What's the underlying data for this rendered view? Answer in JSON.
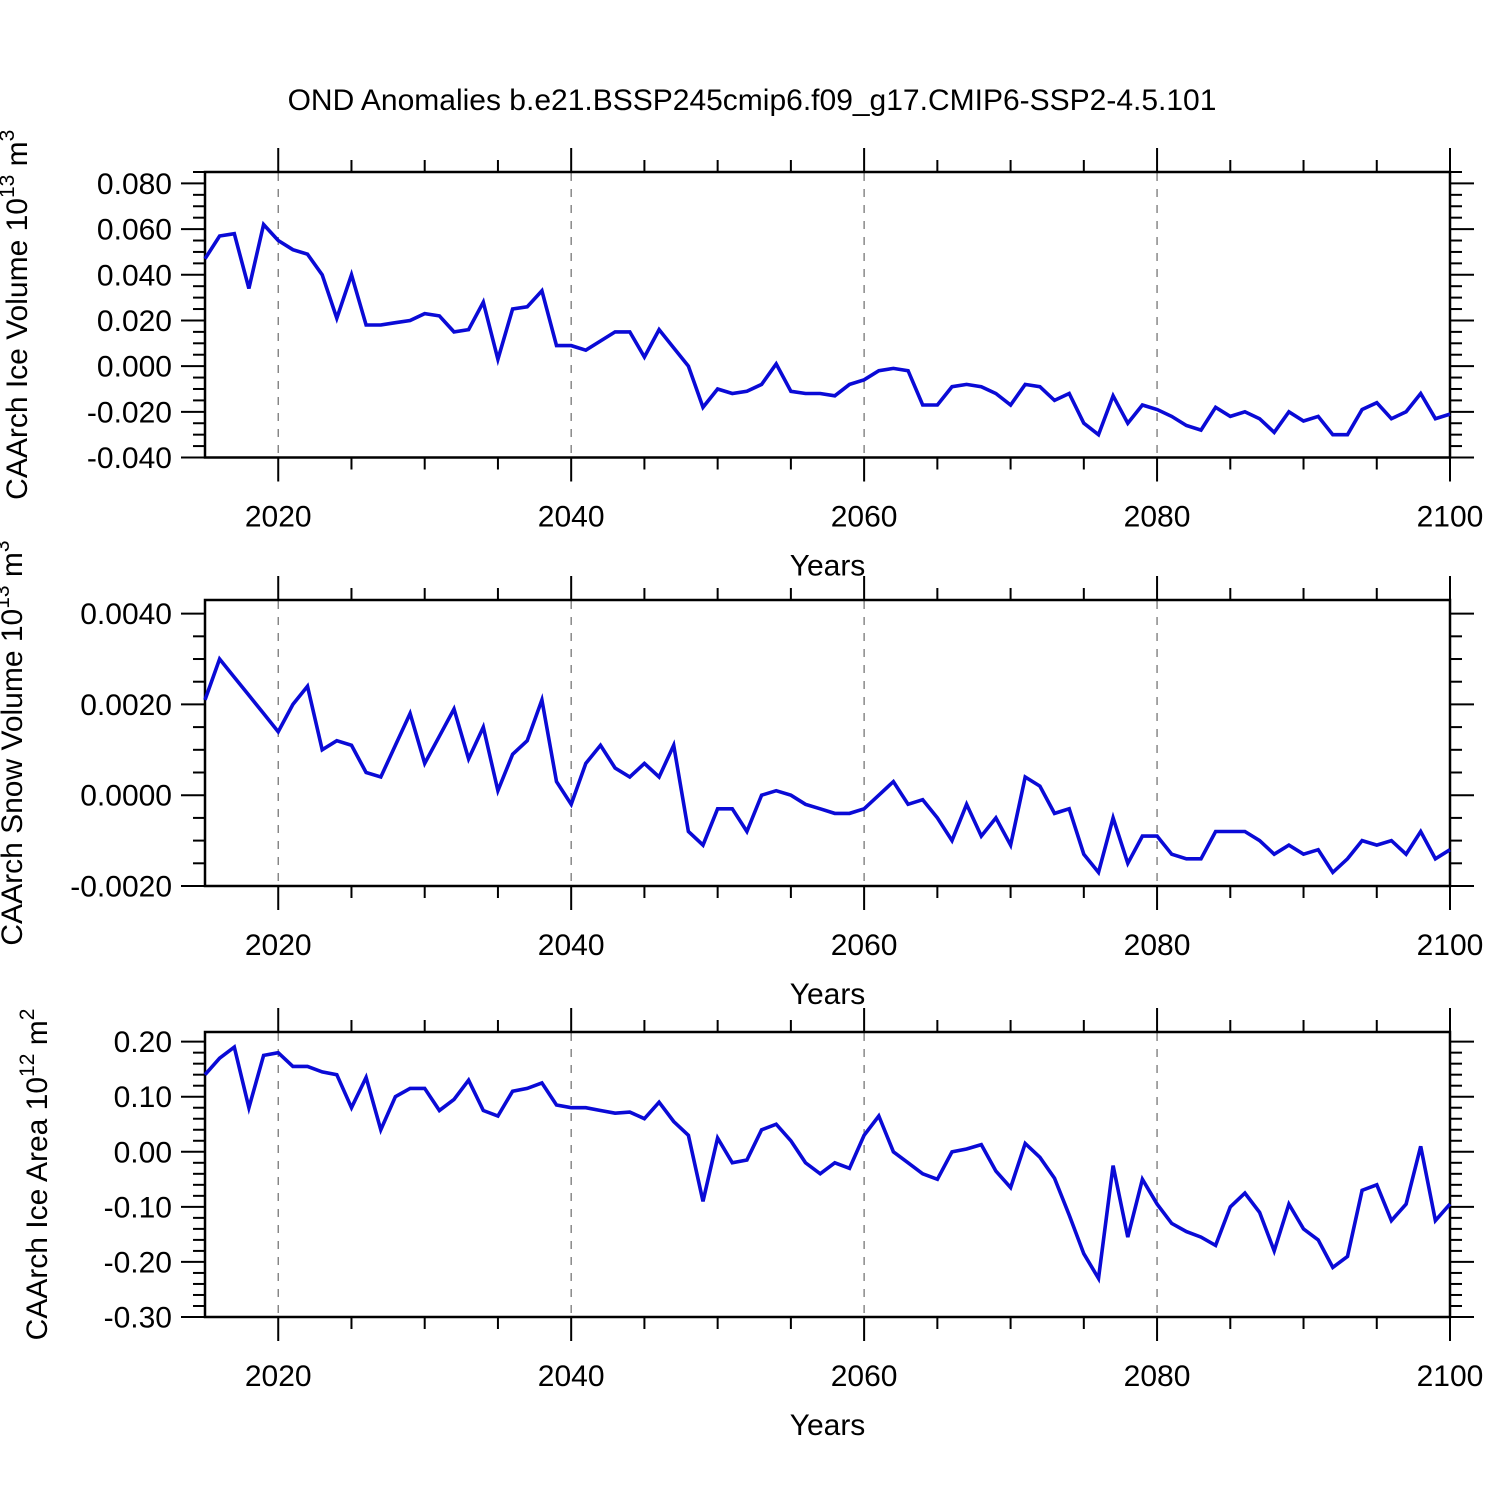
{
  "title": "OND Anomalies b.e21.BSSP245cmip6.f09_g17.CMIP6-SSP2-4.5.101",
  "colors": {
    "line": "#0a0ad6",
    "frame": "#000000",
    "grid": "#777777",
    "background": "#ffffff"
  },
  "x_axis": {
    "label": "Years",
    "range": [
      2015,
      2100
    ],
    "tick_labels": [
      "2020",
      "2040",
      "2060",
      "2080",
      "2100"
    ],
    "tick_values": [
      2020,
      2040,
      2060,
      2080,
      2100
    ],
    "minor_step": 5,
    "grid_years": [
      2020,
      2040,
      2060,
      2080
    ],
    "grid_style": "dashed-vertical"
  },
  "chart_data": [
    {
      "type": "line",
      "name": "caarch-ice-volume",
      "ylabel_parts": [
        {
          "t": "CAArch Ice Volume 10"
        },
        {
          "t": "13",
          "sup": true
        },
        {
          "t": " m",
          "sup": false
        },
        {
          "t": "3",
          "sup": true
        }
      ],
      "ylabel_text": "CAArch Ice Volume 10¹³ m³",
      "ylim": [
        -0.04,
        0.085
      ],
      "y_tick_labels": [
        "0.080",
        "0.060",
        "0.040",
        "0.020",
        "0.000",
        "-0.020",
        "-0.040"
      ],
      "y_tick_values": [
        0.08,
        0.06,
        0.04,
        0.02,
        0.0,
        -0.02,
        -0.04
      ],
      "y_minor_step": 0.005,
      "x_start": 2015,
      "x_step": 1,
      "values": [
        0.047,
        0.057,
        0.058,
        0.034,
        0.062,
        0.055,
        0.051,
        0.049,
        0.04,
        0.021,
        0.04,
        0.018,
        0.018,
        0.019,
        0.02,
        0.023,
        0.022,
        0.015,
        0.016,
        0.028,
        0.003,
        0.025,
        0.026,
        0.033,
        0.009,
        0.009,
        0.007,
        0.011,
        0.015,
        0.015,
        0.004,
        0.016,
        0.008,
        0.0,
        -0.018,
        -0.01,
        -0.012,
        -0.011,
        -0.008,
        0.001,
        -0.011,
        -0.012,
        -0.012,
        -0.013,
        -0.008,
        -0.006,
        -0.002,
        -0.001,
        -0.002,
        -0.017,
        -0.017,
        -0.009,
        -0.008,
        -0.009,
        -0.012,
        -0.017,
        -0.008,
        -0.009,
        -0.015,
        -0.012,
        -0.025,
        -0.03,
        -0.013,
        -0.025,
        -0.017,
        -0.019,
        -0.022,
        -0.026,
        -0.028,
        -0.018,
        -0.022,
        -0.02,
        -0.023,
        -0.029,
        -0.02,
        -0.024,
        -0.022,
        -0.03,
        -0.03,
        -0.019,
        -0.016,
        -0.023,
        -0.02,
        -0.012,
        -0.023,
        -0.021
      ]
    },
    {
      "type": "line",
      "name": "caarch-snow-volume",
      "ylabel_parts": [
        {
          "t": "CAArch Snow Volume 10"
        },
        {
          "t": "13",
          "sup": true
        },
        {
          "t": " m",
          "sup": false
        },
        {
          "t": "3",
          "sup": true
        }
      ],
      "ylabel_text": "CAArch Snow Volume 10¹³ m³",
      "ylim": [
        -0.002,
        0.0043
      ],
      "y_tick_labels": [
        "0.0040",
        "0.0020",
        "0.0000",
        "-0.0020"
      ],
      "y_tick_values": [
        0.004,
        0.002,
        0.0,
        -0.002
      ],
      "y_minor_step": 0.0005,
      "x_start": 2015,
      "x_step": 1,
      "values": [
        0.0021,
        0.003,
        0.0026,
        0.0022,
        0.0018,
        0.0014,
        0.002,
        0.0024,
        0.001,
        0.0012,
        0.0011,
        0.0005,
        0.0004,
        0.0011,
        0.0018,
        0.0007,
        0.0013,
        0.0019,
        0.0008,
        0.0015,
        0.0001,
        0.0009,
        0.0012,
        0.0021,
        0.0003,
        -0.0002,
        0.0007,
        0.0011,
        0.0006,
        0.0004,
        0.0007,
        0.0004,
        0.0011,
        -0.0008,
        -0.0011,
        -0.0003,
        -0.0003,
        -0.0008,
        0.0,
        0.0001,
        0.0,
        -0.0002,
        -0.0003,
        -0.0004,
        -0.0004,
        -0.0003,
        0.0,
        0.0003,
        -0.0002,
        -0.0001,
        -0.0005,
        -0.001,
        -0.0002,
        -0.0009,
        -0.0005,
        -0.0011,
        0.0004,
        0.0002,
        -0.0004,
        -0.0003,
        -0.0013,
        -0.0017,
        -0.0005,
        -0.0015,
        -0.0009,
        -0.0009,
        -0.0013,
        -0.0014,
        -0.0014,
        -0.0008,
        -0.0008,
        -0.0008,
        -0.001,
        -0.0013,
        -0.0011,
        -0.0013,
        -0.0012,
        -0.0017,
        -0.0014,
        -0.001,
        -0.0011,
        -0.001,
        -0.0013,
        -0.0008,
        -0.0014,
        -0.0012
      ]
    },
    {
      "type": "line",
      "name": "caarch-ice-area",
      "ylabel_parts": [
        {
          "t": "CAArch Ice Area 10"
        },
        {
          "t": "12",
          "sup": true
        },
        {
          "t": " m",
          "sup": false
        },
        {
          "t": "2",
          "sup": true
        }
      ],
      "ylabel_text": "CAArch Ice Area 10¹² m²",
      "ylim": [
        -0.3,
        0.2175
      ],
      "y_tick_labels": [
        "0.20",
        "0.10",
        "0.00",
        "-0.10",
        "-0.20",
        "-0.30"
      ],
      "y_tick_values": [
        0.2,
        0.1,
        0.0,
        -0.1,
        -0.2,
        -0.3
      ],
      "y_minor_step": 0.02,
      "x_start": 2015,
      "x_step": 1,
      "values": [
        0.14,
        0.17,
        0.19,
        0.08,
        0.175,
        0.18,
        0.155,
        0.155,
        0.145,
        0.14,
        0.08,
        0.135,
        0.04,
        0.1,
        0.115,
        0.115,
        0.075,
        0.095,
        0.13,
        0.075,
        0.065,
        0.11,
        0.115,
        0.125,
        0.085,
        0.08,
        0.08,
        0.075,
        0.07,
        0.072,
        0.06,
        0.09,
        0.055,
        0.03,
        -0.09,
        0.025,
        -0.02,
        -0.015,
        0.04,
        0.05,
        0.02,
        -0.02,
        -0.04,
        -0.02,
        -0.03,
        0.03,
        0.065,
        0.0,
        -0.02,
        -0.04,
        -0.05,
        0.0,
        0.005,
        0.013,
        -0.035,
        -0.065,
        0.015,
        -0.01,
        -0.048,
        -0.115,
        -0.185,
        -0.23,
        -0.025,
        -0.155,
        -0.05,
        -0.095,
        -0.13,
        -0.145,
        -0.155,
        -0.17,
        -0.1,
        -0.075,
        -0.11,
        -0.18,
        -0.095,
        -0.14,
        -0.16,
        -0.21,
        -0.19,
        -0.07,
        -0.06,
        -0.125,
        -0.095,
        0.01,
        -0.125,
        -0.095
      ]
    }
  ]
}
